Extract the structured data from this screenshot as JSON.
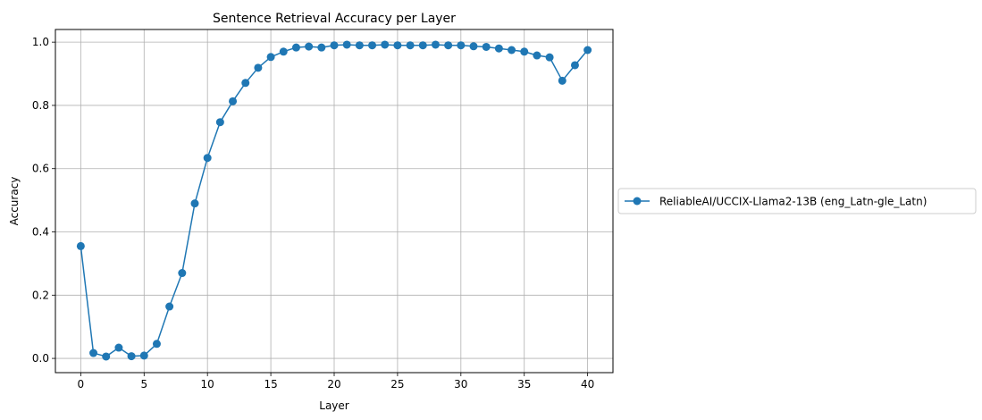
{
  "chart_data": {
    "type": "line",
    "title": "Sentence Retrieval Accuracy per Layer",
    "xlabel": "Layer",
    "ylabel": "Accuracy",
    "xlim": [
      -2,
      42
    ],
    "ylim": [
      -0.045,
      1.04
    ],
    "xticks": [
      0,
      5,
      10,
      15,
      20,
      25,
      30,
      35,
      40
    ],
    "yticks": [
      0.0,
      0.2,
      0.4,
      0.6,
      0.8,
      1.0
    ],
    "xtick_labels": [
      "0",
      "5",
      "10",
      "15",
      "20",
      "25",
      "30",
      "35",
      "40"
    ],
    "ytick_labels": [
      "0.0",
      "0.2",
      "0.4",
      "0.6",
      "0.8",
      "1.0"
    ],
    "grid": true,
    "legend_position": "outside-right",
    "series": [
      {
        "name": "ReliableAI/UCCIX-Llama2-13B (eng_Latn-gle_Latn)",
        "color": "#1f77b4",
        "marker": "circle",
        "x": [
          0,
          1,
          2,
          3,
          4,
          5,
          6,
          7,
          8,
          9,
          10,
          11,
          12,
          13,
          14,
          15,
          16,
          17,
          18,
          19,
          20,
          21,
          22,
          23,
          24,
          25,
          26,
          27,
          28,
          29,
          30,
          31,
          32,
          33,
          34,
          35,
          36,
          37,
          38,
          39,
          40
        ],
        "y": [
          0.355,
          0.017,
          0.006,
          0.034,
          0.007,
          0.009,
          0.046,
          0.164,
          0.27,
          0.49,
          0.634,
          0.747,
          0.813,
          0.871,
          0.919,
          0.953,
          0.97,
          0.983,
          0.986,
          0.983,
          0.99,
          0.992,
          0.99,
          0.99,
          0.992,
          0.99,
          0.99,
          0.99,
          0.992,
          0.99,
          0.99,
          0.987,
          0.985,
          0.98,
          0.975,
          0.97,
          0.958,
          0.952,
          0.878,
          0.927,
          0.975
        ]
      }
    ]
  }
}
